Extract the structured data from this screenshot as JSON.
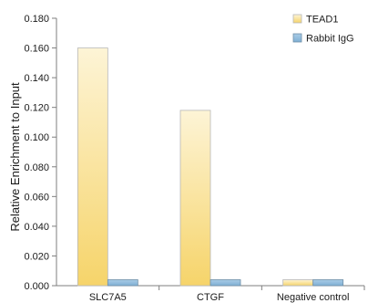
{
  "chart_data": {
    "type": "bar",
    "categories": [
      "SLC7A5",
      "CTGF",
      "Negative control"
    ],
    "series": [
      {
        "name": "TEAD1",
        "values": [
          0.16,
          0.118,
          0.004
        ],
        "color": "#f6d77a"
      },
      {
        "name": "Rabbit IgG",
        "values": [
          0.004,
          0.004,
          0.004
        ],
        "color": "#8fb8d8"
      }
    ],
    "ylabel": "Relative Enrichment to Input",
    "xlabel": "",
    "ylim": [
      0,
      0.18
    ],
    "yticks": [
      "0.000",
      "0.020",
      "0.040",
      "0.060",
      "0.080",
      "0.100",
      "0.120",
      "0.140",
      "0.160",
      "0.180"
    ],
    "legend": "top-right",
    "grid": false
  }
}
